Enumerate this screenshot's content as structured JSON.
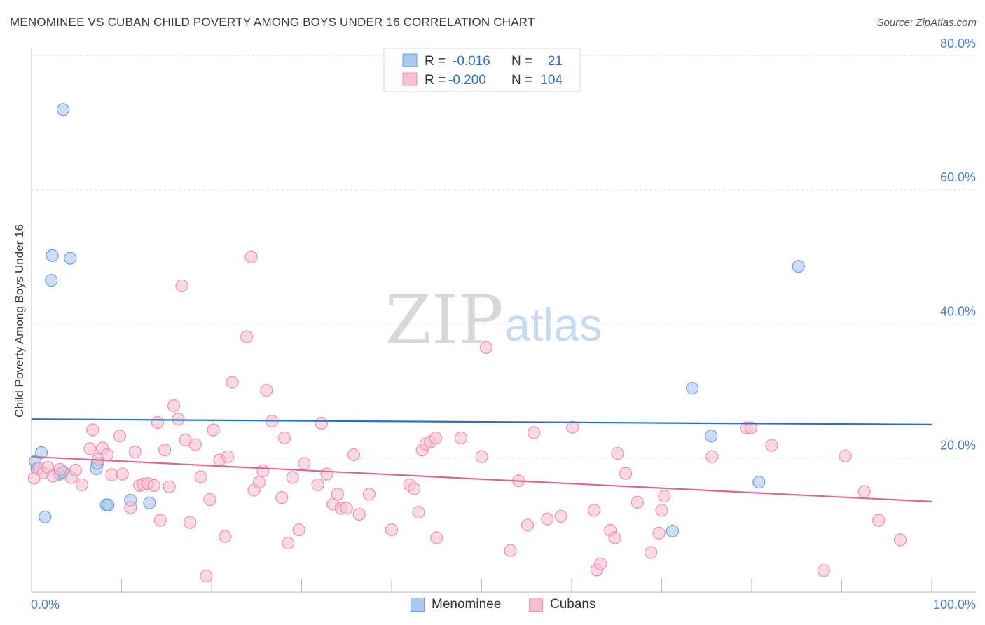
{
  "header": {
    "title": "MENOMINEE VS CUBAN CHILD POVERTY AMONG BOYS UNDER 16 CORRELATION CHART",
    "source": "Source: ZipAtlas.com"
  },
  "watermark": {
    "zip": "ZIP",
    "atlas": "atlas"
  },
  "colors": {
    "menominee_fill": "#a8c8f0",
    "menominee_stroke": "#6f9fe0",
    "menominee_line": "#2b6fcc",
    "cubans_fill": "#f7c0d0",
    "cubans_stroke": "#ec8fb0",
    "cubans_line": "#e06692",
    "axis_value_text": "#4a7fd0",
    "grid": "#dcdcdc"
  },
  "legend_top": [
    {
      "r_label": "R =",
      "r_value": "-0.016",
      "n_label": "N =",
      "n_value": "21"
    },
    {
      "r_label": "R =",
      "r_value": "-0.200",
      "n_label": "N =",
      "n_value": "104"
    }
  ],
  "legend_bottom": [
    "Menominee",
    "Cubans"
  ],
  "chart_data": {
    "type": "scatter",
    "ylabel": "Child Poverty Among Boys Under 16",
    "xlim": [
      0,
      100
    ],
    "ylim": [
      0,
      80
    ],
    "x_tick_labels": [
      "0.0%",
      "100.0%"
    ],
    "y_ticks": [
      20,
      40,
      60,
      80
    ],
    "y_tick_labels": [
      "20.0%",
      "40.0%",
      "60.0%",
      "80.0%"
    ],
    "grid": true,
    "legend_placement": "top-center",
    "series": [
      {
        "name": "Menominee",
        "trend": {
          "y_at_x0": 25.8,
          "y_at_x100": 25.0
        },
        "points": [
          [
            0.4,
            19.5
          ],
          [
            0.6,
            18.4
          ],
          [
            1.1,
            20.8
          ],
          [
            1.5,
            11.2
          ],
          [
            3.5,
            72.0
          ],
          [
            2.3,
            50.2
          ],
          [
            4.3,
            49.8
          ],
          [
            2.2,
            46.5
          ],
          [
            3.1,
            17.6
          ],
          [
            3.5,
            17.9
          ],
          [
            7.2,
            18.4
          ],
          [
            7.3,
            19.2
          ],
          [
            8.3,
            13.0
          ],
          [
            8.5,
            13.0
          ],
          [
            11.0,
            13.7
          ],
          [
            13.1,
            13.3
          ],
          [
            73.4,
            30.4
          ],
          [
            75.5,
            23.3
          ],
          [
            80.8,
            16.4
          ],
          [
            85.2,
            48.6
          ],
          [
            71.2,
            9.1
          ]
        ]
      },
      {
        "name": "Cubans",
        "trend": {
          "y_at_x0": 20.2,
          "y_at_x100": 13.5
        },
        "points": [
          [
            0.3,
            17.0
          ],
          [
            0.8,
            18.5
          ],
          [
            1.3,
            17.8
          ],
          [
            1.8,
            18.6
          ],
          [
            2.4,
            17.3
          ],
          [
            3.2,
            18.3
          ],
          [
            4.4,
            17.1
          ],
          [
            4.9,
            18.2
          ],
          [
            5.6,
            16.0
          ],
          [
            6.5,
            21.4
          ],
          [
            6.8,
            24.2
          ],
          [
            7.4,
            19.8
          ],
          [
            7.9,
            21.5
          ],
          [
            8.4,
            20.5
          ],
          [
            8.9,
            17.5
          ],
          [
            9.8,
            23.3
          ],
          [
            10.1,
            17.6
          ],
          [
            11.0,
            12.6
          ],
          [
            11.5,
            20.9
          ],
          [
            12.0,
            15.9
          ],
          [
            12.4,
            16.1
          ],
          [
            12.9,
            16.2
          ],
          [
            13.6,
            15.9
          ],
          [
            14.0,
            25.3
          ],
          [
            14.3,
            10.7
          ],
          [
            14.8,
            21.2
          ],
          [
            15.3,
            15.7
          ],
          [
            15.8,
            27.8
          ],
          [
            16.3,
            25.8
          ],
          [
            16.7,
            45.7
          ],
          [
            17.1,
            22.7
          ],
          [
            17.6,
            10.4
          ],
          [
            18.2,
            22.0
          ],
          [
            18.8,
            17.2
          ],
          [
            19.4,
            2.4
          ],
          [
            19.8,
            13.8
          ],
          [
            20.2,
            24.2
          ],
          [
            20.9,
            19.7
          ],
          [
            21.5,
            8.3
          ],
          [
            21.8,
            20.2
          ],
          [
            22.3,
            31.3
          ],
          [
            23.9,
            38.1
          ],
          [
            24.4,
            50.0
          ],
          [
            24.7,
            15.2
          ],
          [
            25.3,
            16.4
          ],
          [
            25.7,
            18.1
          ],
          [
            26.1,
            30.1
          ],
          [
            26.7,
            25.5
          ],
          [
            27.8,
            14.1
          ],
          [
            28.1,
            23.0
          ],
          [
            28.5,
            7.3
          ],
          [
            29.0,
            17.1
          ],
          [
            29.7,
            9.3
          ],
          [
            30.3,
            19.2
          ],
          [
            31.8,
            16.0
          ],
          [
            32.2,
            25.2
          ],
          [
            32.8,
            17.6
          ],
          [
            33.5,
            13.1
          ],
          [
            34.0,
            14.6
          ],
          [
            34.4,
            12.5
          ],
          [
            35.0,
            12.5
          ],
          [
            35.8,
            20.5
          ],
          [
            36.4,
            11.6
          ],
          [
            37.5,
            14.6
          ],
          [
            40.0,
            9.3
          ],
          [
            42.0,
            16.0
          ],
          [
            42.5,
            15.4
          ],
          [
            43.0,
            11.9
          ],
          [
            43.4,
            21.2
          ],
          [
            43.8,
            22.1
          ],
          [
            44.3,
            22.4
          ],
          [
            44.9,
            23.0
          ],
          [
            45.0,
            8.1
          ],
          [
            47.7,
            23.0
          ],
          [
            50.0,
            20.2
          ],
          [
            50.5,
            36.5
          ],
          [
            53.2,
            6.2
          ],
          [
            54.1,
            16.6
          ],
          [
            55.1,
            10.0
          ],
          [
            55.8,
            23.8
          ],
          [
            57.3,
            10.9
          ],
          [
            58.8,
            11.3
          ],
          [
            60.1,
            24.6
          ],
          [
            62.5,
            12.2
          ],
          [
            62.8,
            3.3
          ],
          [
            63.2,
            4.2
          ],
          [
            64.3,
            9.2
          ],
          [
            64.8,
            8.1
          ],
          [
            65.1,
            20.7
          ],
          [
            66.0,
            17.7
          ],
          [
            67.3,
            13.4
          ],
          [
            68.8,
            5.9
          ],
          [
            69.7,
            8.8
          ],
          [
            70.0,
            12.2
          ],
          [
            70.3,
            14.3
          ],
          [
            75.6,
            20.2
          ],
          [
            79.4,
            24.5
          ],
          [
            79.9,
            24.5
          ],
          [
            82.2,
            21.9
          ],
          [
            88.0,
            3.2
          ],
          [
            90.4,
            20.3
          ],
          [
            92.5,
            15.0
          ],
          [
            94.1,
            10.7
          ],
          [
            96.5,
            7.8
          ]
        ]
      }
    ]
  }
}
